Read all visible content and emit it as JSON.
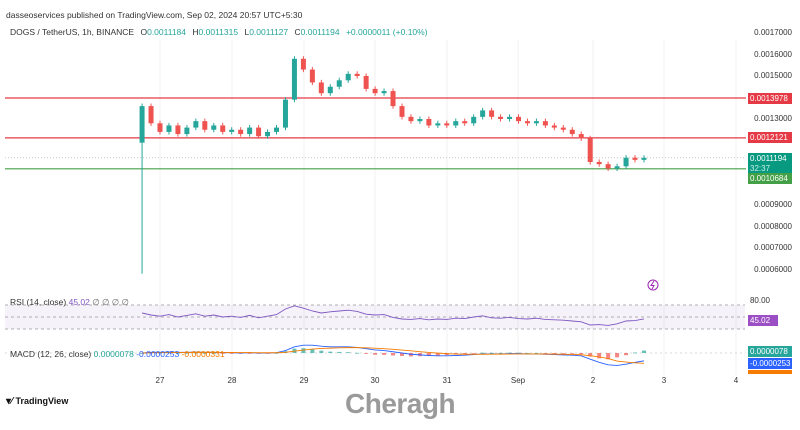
{
  "header": {
    "publisher": "dasseoservices published on TradingView.com, Sep 02, 2024 20:57 UTC+5:30",
    "symbol": "DOGS / TetherUS, 1h, BINANCE",
    "o_label": "O",
    "o": "0.0011184",
    "h_label": "H",
    "h": "0.0011315",
    "l_label": "L",
    "l": "0.0011127",
    "c_label": "C",
    "c": "0.0011194",
    "change": "+0.0000011 (+0.10%)"
  },
  "price_axis": [
    "0.0017000",
    "0.0016000",
    "0.0015000",
    "0.0013000",
    "0.0009000",
    "0.0008000",
    "0.0007000",
    "0.0006000"
  ],
  "levels": [
    {
      "label": "0.0013978",
      "value": 0.0013978,
      "color": "#e53945"
    },
    {
      "label": "0.0012121",
      "value": 0.0012121,
      "color": "#e53945"
    },
    {
      "label": "0.0010684",
      "value": 0.0010684,
      "color": "#43a047"
    }
  ],
  "current": {
    "label": "0.0011194",
    "countdown": "32:37",
    "color": "#089981"
  },
  "rsi": {
    "title": "RSI (14, close)",
    "value": "45.02",
    "extra": "∅ ∅ ∅ ∅",
    "upper": "80.00",
    "color": "#7e57c2"
  },
  "macd": {
    "title": "MACD (12, 26, close)",
    "hist": "0.0000078",
    "macd": "-0.0000253",
    "signal": "-0.0000331",
    "colors": {
      "hist": "#26a69a",
      "macd": "#2962ff",
      "signal": "#f57c00"
    }
  },
  "x_axis": [
    "27",
    "28",
    "29",
    "30",
    "31",
    "Sep",
    "2",
    "3",
    "4"
  ],
  "footer": {
    "logo": "TradingView",
    "watermark": "Cheragh"
  },
  "chart_data": {
    "type": "candlestick",
    "interval_hours": 3,
    "start": "Aug 26 18:00",
    "ylim": [
      0.00055,
      0.00172
    ],
    "closes": [
      0.00136,
      0.00128,
      0.00124,
      0.00127,
      0.00123,
      0.00126,
      0.00129,
      0.00125,
      0.00127,
      0.00124,
      0.00125,
      0.00123,
      0.00126,
      0.00122,
      0.00124,
      0.00126,
      0.00139,
      0.00158,
      0.00153,
      0.00147,
      0.00142,
      0.00145,
      0.00148,
      0.00151,
      0.0015,
      0.00144,
      0.00142,
      0.00143,
      0.00136,
      0.00131,
      0.00129,
      0.0013,
      0.00127,
      0.00128,
      0.00127,
      0.00129,
      0.00128,
      0.00131,
      0.00134,
      0.00131,
      0.0013,
      0.00131,
      0.00129,
      0.00128,
      0.00129,
      0.00127,
      0.00126,
      0.00125,
      0.00123,
      0.00121,
      0.0011,
      0.00109,
      0.00107,
      0.00108,
      0.00112,
      0.00111,
      0.0011194
    ],
    "first_open": 0.00119,
    "first_low": 0.00058,
    "rsi": [
      60,
      55,
      52,
      56,
      50,
      54,
      58,
      52,
      55,
      50,
      52,
      49,
      54,
      48,
      52,
      56,
      70,
      78,
      72,
      65,
      60,
      63,
      65,
      67,
      64,
      57,
      55,
      56,
      49,
      45,
      44,
      46,
      43,
      45,
      44,
      47,
      46,
      50,
      53,
      48,
      47,
      49,
      46,
      45,
      47,
      44,
      43,
      42,
      40,
      38,
      30,
      31,
      29,
      33,
      40,
      41,
      45.02
    ],
    "macd": [
      0,
      2e-06,
      2e-06,
      3e-06,
      2e-06,
      2e-06,
      3e-06,
      2e-06,
      2e-06,
      1e-06,
      1e-06,
      0,
      1e-06,
      0,
      0,
      1e-06,
      8e-06,
      2e-05,
      2.5e-05,
      2.5e-05,
      2.2e-05,
      2e-05,
      2e-05,
      2e-05,
      1.8e-05,
      1.4e-05,
      1e-05,
      8e-06,
      4e-06,
      0,
      -4e-06,
      -6e-06,
      -8e-06,
      -9e-06,
      -9e-06,
      -8e-06,
      -7e-06,
      -5e-06,
      -3e-06,
      -3e-06,
      -3e-06,
      -2e-06,
      -2e-06,
      -3e-06,
      -3e-06,
      -4e-06,
      -5e-06,
      -6e-06,
      -7e-06,
      -9e-06,
      -2e-05,
      -3e-05,
      -3.8e-05,
      -4e-05,
      -3.6e-05,
      -3e-05,
      -2.53e-05
    ],
    "signal": [
      0,
      5e-07,
      1e-06,
      1.5e-06,
      1.6e-06,
      1.7e-06,
      2e-06,
      2e-06,
      2e-06,
      1.8e-06,
      1.6e-06,
      1.3e-06,
      1.2e-06,
      1e-06,
      8e-07,
      8e-07,
      2.2e-06,
      5.8e-06,
      9.6e-06,
      1.27e-05,
      1.46e-05,
      1.57e-05,
      1.66e-05,
      1.73e-05,
      1.74e-05,
      1.67e-05,
      1.54e-05,
      1.39e-05,
      1.2e-05,
      9.6e-06,
      6.9e-06,
      4.3e-06,
      1.8e-06,
      -4e-07,
      -2.1e-06,
      -3.3e-06,
      -4e-06,
      -4.2e-06,
      -4e-06,
      -3.8e-06,
      -3.6e-06,
      -3.3e-06,
      -3.1e-06,
      -3.1e-06,
      -3.1e-06,
      -3.3e-06,
      -3.6e-06,
      -4.1e-06,
      -4.7e-06,
      -5.6e-06,
      -8.5e-06,
      -1.28e-05,
      -1.78e-05,
      -2.6e-05,
      -2.9e-05,
      -3.15e-05,
      -3.31e-05
    ]
  }
}
